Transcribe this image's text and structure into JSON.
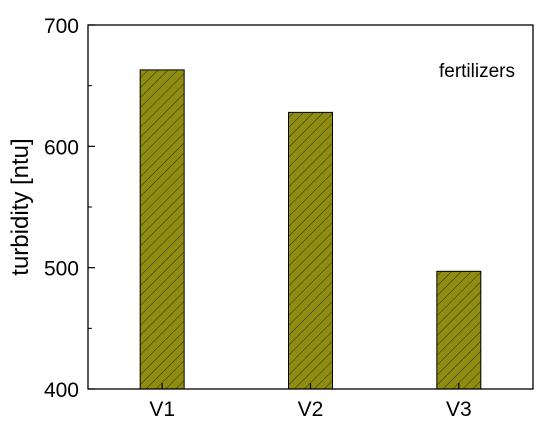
{
  "chart_data": {
    "type": "bar",
    "categories": [
      "V1",
      "V2",
      "V3"
    ],
    "values": [
      663,
      628,
      497
    ],
    "ylabel": "turbidity [ntu]",
    "xlabel": "",
    "ylim": [
      400,
      700
    ],
    "yticks": [
      400,
      500,
      600,
      700
    ],
    "annotation": "fertilizers",
    "grid": false,
    "bar_color": "#8f8c12",
    "hatch_color": "#2e2d05"
  }
}
